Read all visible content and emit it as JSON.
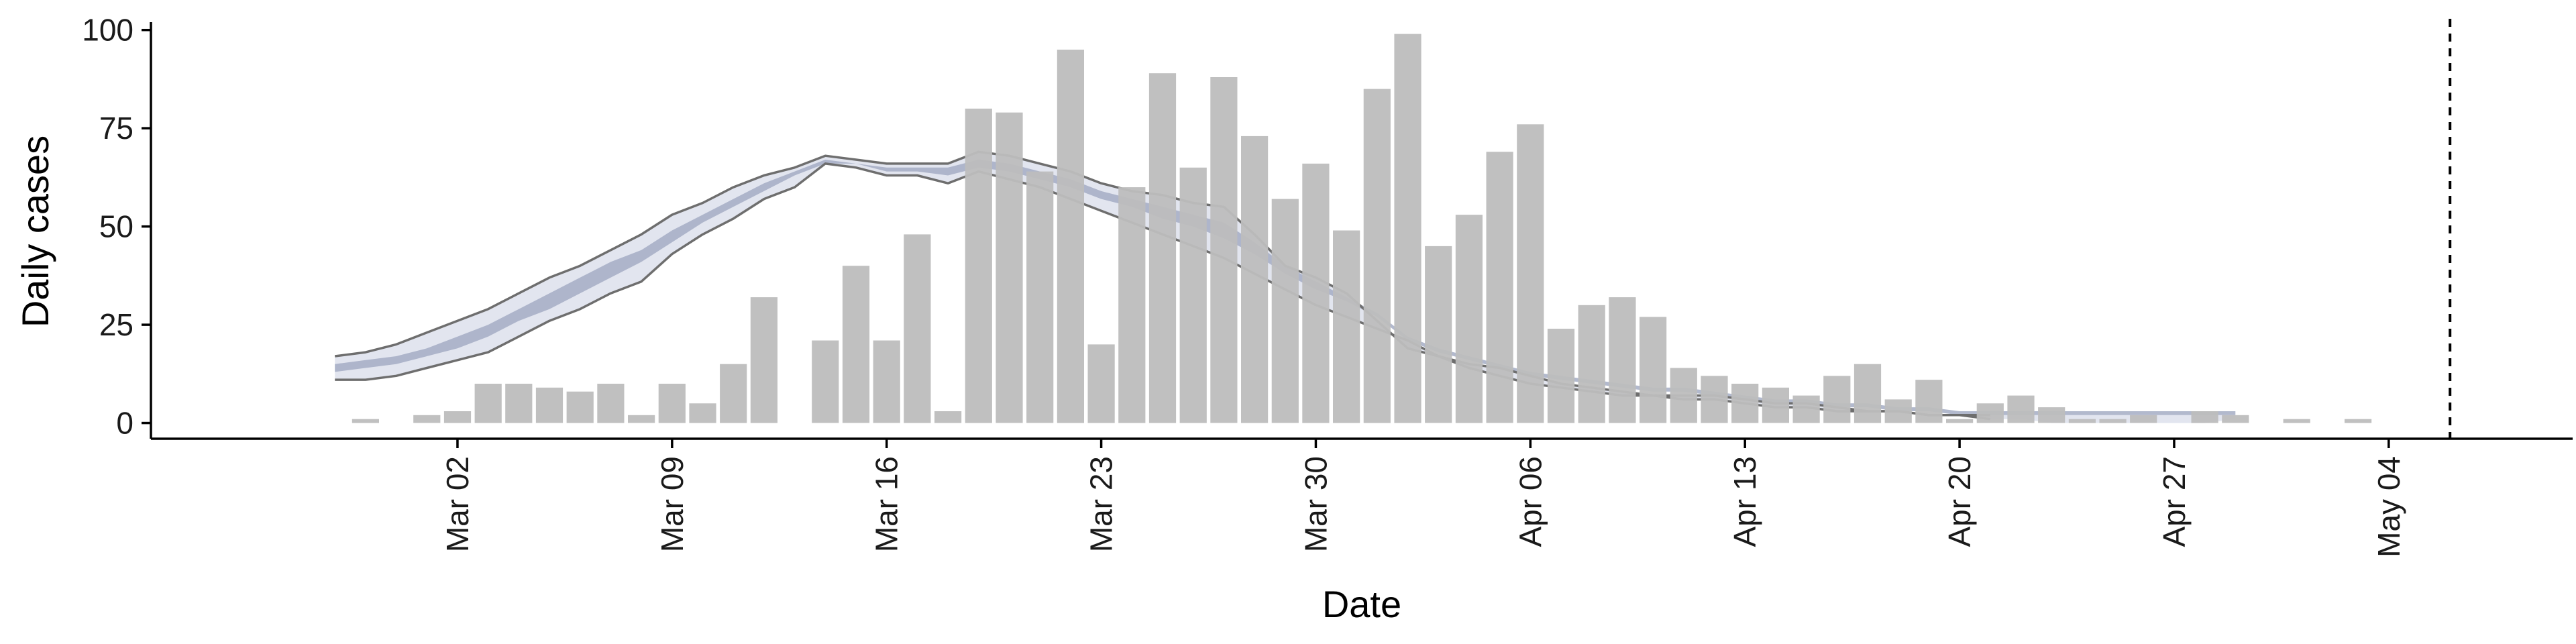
{
  "chart_data": {
    "type": "bar",
    "xlabel": "Date",
    "ylabel": "Daily cases",
    "ylim": [
      -4,
      102
    ],
    "xlim": [
      "2020-02-21",
      "2020-05-10"
    ],
    "y_ticks": [
      0,
      25,
      50,
      75,
      100
    ],
    "x_ticks": [
      {
        "date": "2020-03-02",
        "label": "Mar 02"
      },
      {
        "date": "2020-03-09",
        "label": "Mar 09"
      },
      {
        "date": "2020-03-16",
        "label": "Mar 16"
      },
      {
        "date": "2020-03-23",
        "label": "Mar 23"
      },
      {
        "date": "2020-03-30",
        "label": "Mar 30"
      },
      {
        "date": "2020-04-06",
        "label": "Apr 06"
      },
      {
        "date": "2020-04-13",
        "label": "Apr 13"
      },
      {
        "date": "2020-04-20",
        "label": "Apr 20"
      },
      {
        "date": "2020-04-27",
        "label": "Apr 27"
      },
      {
        "date": "2020-05-04",
        "label": "May 04"
      }
    ],
    "grid": false,
    "legend": "none",
    "colors": {
      "bars": "#bdbdbd",
      "band_outer": "#dde0ec",
      "band_inner": "#a4adc4",
      "band_lines": "#6e6e6e",
      "marker_line": "#000000"
    },
    "vertical_marker_date": "2020-05-06",
    "daily_cases": {
      "start_date": "2020-02-28",
      "values": [
        1,
        0,
        2,
        3,
        10,
        10,
        9,
        8,
        10,
        2,
        10,
        5,
        15,
        32,
        0,
        21,
        40,
        21,
        48,
        3,
        80,
        79,
        64,
        95,
        20,
        60,
        89,
        65,
        88,
        73,
        57,
        66,
        49,
        85,
        99,
        45,
        53,
        69,
        76,
        24,
        30,
        32,
        27,
        14,
        12,
        10,
        9,
        7,
        12,
        15,
        6,
        11,
        1,
        5,
        7,
        4,
        1,
        1,
        2,
        0,
        3,
        2,
        0,
        1,
        0,
        1
      ]
    },
    "estimate_band": {
      "start_date": "2020-02-27",
      "outer_lower": [
        11,
        11,
        12,
        14,
        16,
        18,
        22,
        26,
        29,
        33,
        36,
        43,
        48,
        52,
        57,
        60,
        66,
        65,
        63,
        63,
        61,
        64,
        62,
        60,
        57,
        54,
        51,
        48,
        45,
        42,
        38,
        34,
        30,
        27,
        24,
        21,
        17,
        15,
        14,
        12,
        10,
        9,
        8,
        7,
        7,
        7,
        6,
        5,
        5,
        4,
        3,
        3,
        2,
        2,
        1,
        1,
        0,
        0,
        0,
        0,
        0,
        0,
        1
      ],
      "outer_upper": [
        17,
        18,
        20,
        23,
        26,
        29,
        33,
        37,
        40,
        44,
        48,
        53,
        56,
        60,
        63,
        65,
        68,
        67,
        66,
        66,
        66,
        69,
        68,
        66,
        64,
        61,
        59,
        58,
        56,
        55,
        48,
        40,
        37,
        33,
        26,
        19,
        17,
        14,
        12,
        10,
        9,
        8,
        7,
        7,
        6,
        6,
        5,
        4,
        4,
        3,
        3,
        3,
        2,
        2,
        2,
        2,
        2,
        2,
        2,
        2,
        2,
        2,
        2
      ],
      "inner_lower": [
        13,
        14,
        15,
        17,
        19,
        22,
        26,
        29,
        33,
        37,
        41,
        46,
        51,
        55,
        59,
        63,
        66,
        66,
        64,
        64,
        63,
        65,
        64,
        62,
        60,
        57,
        55,
        52,
        50,
        47,
        43,
        38,
        34,
        31,
        27,
        21,
        18,
        16,
        14,
        12,
        11,
        10,
        9,
        8,
        8,
        7,
        6,
        5,
        5,
        4,
        4,
        3,
        3,
        2,
        2,
        2,
        2,
        2,
        2,
        2,
        2,
        2,
        2
      ],
      "inner_upper": [
        15,
        16,
        17,
        19,
        22,
        25,
        29,
        33,
        37,
        41,
        44,
        49,
        53,
        57,
        61,
        64,
        67,
        66,
        65,
        65,
        65,
        67,
        66,
        64,
        62,
        59,
        57,
        55,
        53,
        51,
        46,
        40,
        36,
        32,
        28,
        22,
        19,
        17,
        15,
        13,
        12,
        11,
        10,
        9,
        9,
        8,
        7,
        6,
        6,
        5,
        5,
        4,
        4,
        3,
        3,
        3,
        3,
        3,
        3,
        3,
        3,
        3,
        3
      ]
    }
  }
}
